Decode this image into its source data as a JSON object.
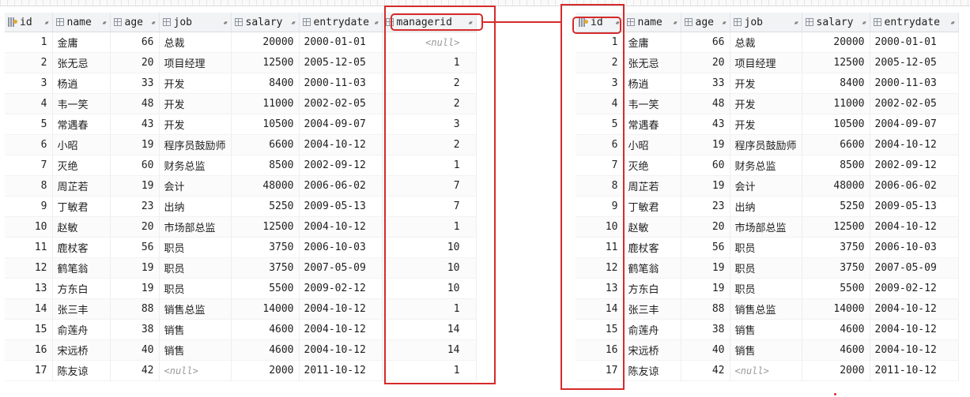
{
  "left_table": {
    "columns": [
      {
        "label": "id",
        "icon": "key-icon"
      },
      {
        "label": "name",
        "icon": "column-icon"
      },
      {
        "label": "age",
        "icon": "column-icon"
      },
      {
        "label": "job",
        "icon": "column-icon"
      },
      {
        "label": "salary",
        "icon": "column-icon"
      },
      {
        "label": "entrydate",
        "icon": "column-icon"
      },
      {
        "label": "managerid",
        "icon": "column-icon"
      }
    ]
  },
  "right_table": {
    "columns": [
      {
        "label": "id",
        "icon": "key-icon"
      },
      {
        "label": "name",
        "icon": "column-icon"
      },
      {
        "label": "age",
        "icon": "column-icon"
      },
      {
        "label": "job",
        "icon": "column-icon"
      },
      {
        "label": "salary",
        "icon": "column-icon"
      },
      {
        "label": "entrydate",
        "icon": "column-icon"
      }
    ]
  },
  "null_text": "<null>",
  "rows": [
    {
      "id": "1",
      "name": "金庸",
      "age": "66",
      "job": "总裁",
      "salary": "20000",
      "entrydate": "2000-01-01",
      "managerid": null
    },
    {
      "id": "2",
      "name": "张无忌",
      "age": "20",
      "job": "项目经理",
      "salary": "12500",
      "entrydate": "2005-12-05",
      "managerid": "1"
    },
    {
      "id": "3",
      "name": "杨逍",
      "age": "33",
      "job": "开发",
      "salary": "8400",
      "entrydate": "2000-11-03",
      "managerid": "2"
    },
    {
      "id": "4",
      "name": "韦一笑",
      "age": "48",
      "job": "开发",
      "salary": "11000",
      "entrydate": "2002-02-05",
      "managerid": "2"
    },
    {
      "id": "5",
      "name": "常遇春",
      "age": "43",
      "job": "开发",
      "salary": "10500",
      "entrydate": "2004-09-07",
      "managerid": "3"
    },
    {
      "id": "6",
      "name": "小昭",
      "age": "19",
      "job": "程序员鼓励师",
      "salary": "6600",
      "entrydate": "2004-10-12",
      "managerid": "2"
    },
    {
      "id": "7",
      "name": "灭绝",
      "age": "60",
      "job": "财务总监",
      "salary": "8500",
      "entrydate": "2002-09-12",
      "managerid": "1"
    },
    {
      "id": "8",
      "name": "周芷若",
      "age": "19",
      "job": "会计",
      "salary": "48000",
      "entrydate": "2006-06-02",
      "managerid": "7"
    },
    {
      "id": "9",
      "name": "丁敏君",
      "age": "23",
      "job": "出纳",
      "salary": "5250",
      "entrydate": "2009-05-13",
      "managerid": "7"
    },
    {
      "id": "10",
      "name": "赵敏",
      "age": "20",
      "job": "市场部总监",
      "salary": "12500",
      "entrydate": "2004-10-12",
      "managerid": "1"
    },
    {
      "id": "11",
      "name": "鹿杖客",
      "age": "56",
      "job": "职员",
      "salary": "3750",
      "entrydate": "2006-10-03",
      "managerid": "10"
    },
    {
      "id": "12",
      "name": "鹤笔翁",
      "age": "19",
      "job": "职员",
      "salary": "3750",
      "entrydate": "2007-05-09",
      "managerid": "10"
    },
    {
      "id": "13",
      "name": "方东白",
      "age": "19",
      "job": "职员",
      "salary": "5500",
      "entrydate": "2009-02-12",
      "managerid": "10"
    },
    {
      "id": "14",
      "name": "张三丰",
      "age": "88",
      "job": "销售总监",
      "salary": "14000",
      "entrydate": "2004-10-12",
      "managerid": "1"
    },
    {
      "id": "15",
      "name": "俞莲舟",
      "age": "38",
      "job": "销售",
      "salary": "4600",
      "entrydate": "2004-10-12",
      "managerid": "14"
    },
    {
      "id": "16",
      "name": "宋远桥",
      "age": "40",
      "job": "销售",
      "salary": "4600",
      "entrydate": "2004-10-12",
      "managerid": "14"
    },
    {
      "id": "17",
      "name": "陈友谅",
      "age": "42",
      "job": null,
      "salary": "2000",
      "entrydate": "2011-10-12",
      "managerid": "1"
    }
  ],
  "colors": {
    "highlight": "#d62a2a",
    "header_bg": "#f2f3f5",
    "null_text": "#9a9a9a"
  }
}
